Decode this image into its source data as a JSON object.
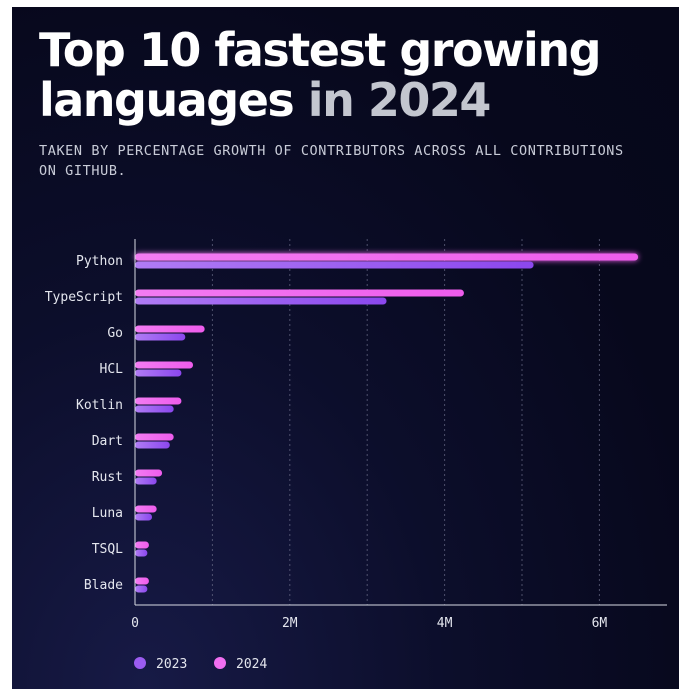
{
  "title": {
    "line1": "Top 10 fastest growing",
    "line2_main": "languages",
    "line2_accent": " in 2024"
  },
  "subtitle": "TAKEN BY PERCENTAGE GROWTH OF CONTRIBUTORS ACROSS ALL CONTRIBUTIONS ON GITHUB.",
  "colors": {
    "series_2024": "#f06ef0",
    "series_2023": "#9b5cf0",
    "background": "#0a0c24",
    "gridline": "#6a6c88"
  },
  "chart_data": {
    "type": "bar",
    "orientation": "horizontal",
    "categories": [
      "Python",
      "TypeScript",
      "Go",
      "HCL",
      "Kotlin",
      "Dart",
      "Rust",
      "Luna",
      "TSQL",
      "Blade"
    ],
    "series": [
      {
        "name": "2024",
        "values": [
          6.5,
          4.25,
          0.9,
          0.75,
          0.6,
          0.5,
          0.35,
          0.28,
          0.18,
          0.18
        ]
      },
      {
        "name": "2023",
        "values": [
          5.15,
          3.25,
          0.65,
          0.6,
          0.5,
          0.45,
          0.28,
          0.22,
          0.16,
          0.16
        ]
      }
    ],
    "xlim": [
      0,
      6.8
    ],
    "x_ticks": [
      {
        "value": 0,
        "label": "0"
      },
      {
        "value": 2,
        "label": "2M"
      },
      {
        "value": 4,
        "label": "4M"
      },
      {
        "value": 6,
        "label": "6M"
      }
    ],
    "minor_gridlines": [
      1,
      3,
      5
    ],
    "grid": true,
    "legend_position": "bottom-left",
    "legend": [
      "2023",
      "2024"
    ]
  }
}
